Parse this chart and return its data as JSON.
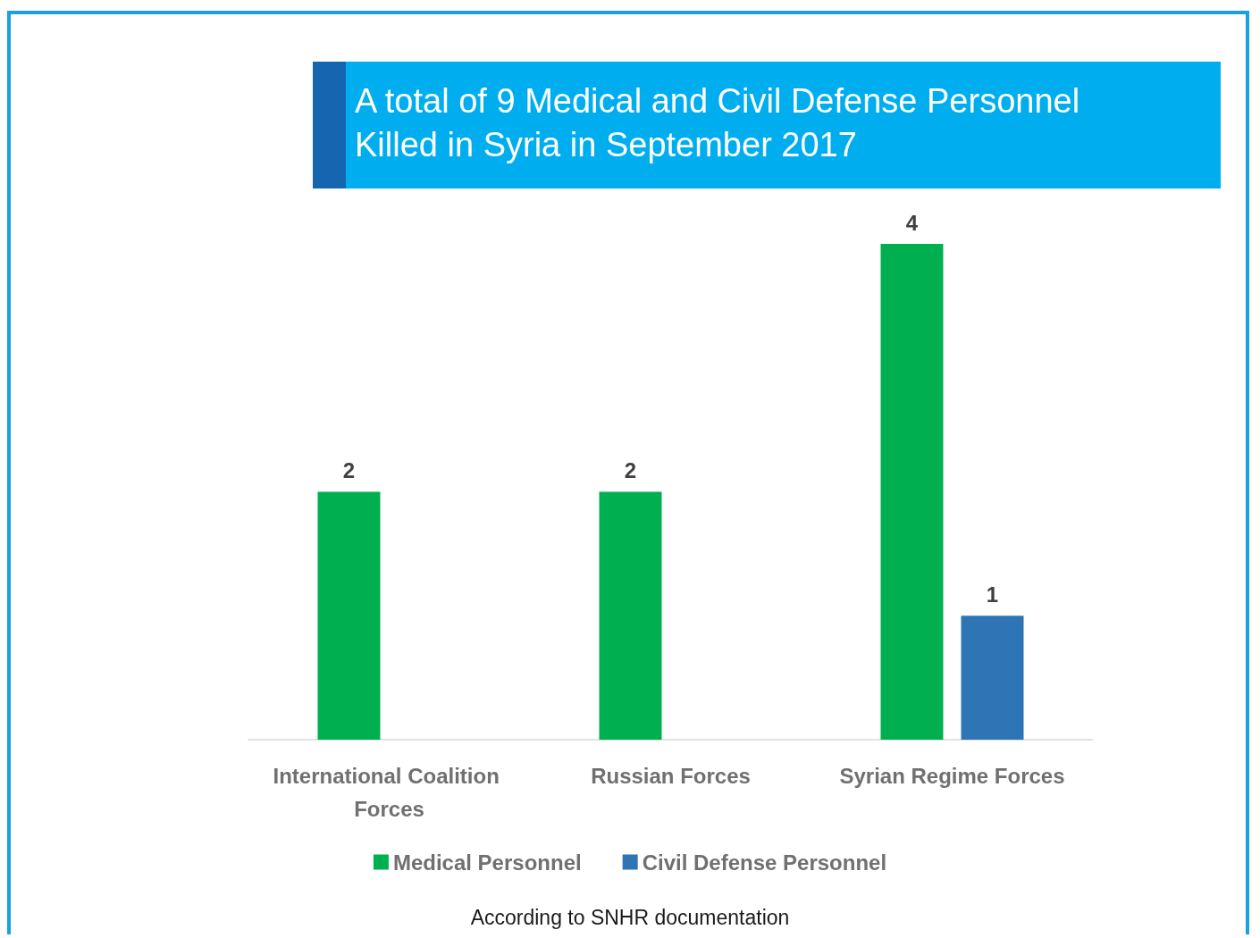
{
  "chart_data": {
    "type": "bar",
    "title": "A total of 9 Medical and Civil Defense Personnel Killed in Syria in September 2017",
    "categories": [
      "International Coalition Forces",
      "Russian Forces",
      "Syrian Regime Forces"
    ],
    "series": [
      {
        "name": "Medical Personnel",
        "color": "#00b050",
        "values": [
          2,
          2,
          4
        ]
      },
      {
        "name": "Civil Defense Personnel",
        "color": "#2e75b6",
        "values": [
          null,
          null,
          1
        ]
      }
    ],
    "data_labels": true,
    "legend": "bottom",
    "annotations": [
      "According to SNHR documentation"
    ]
  }
}
